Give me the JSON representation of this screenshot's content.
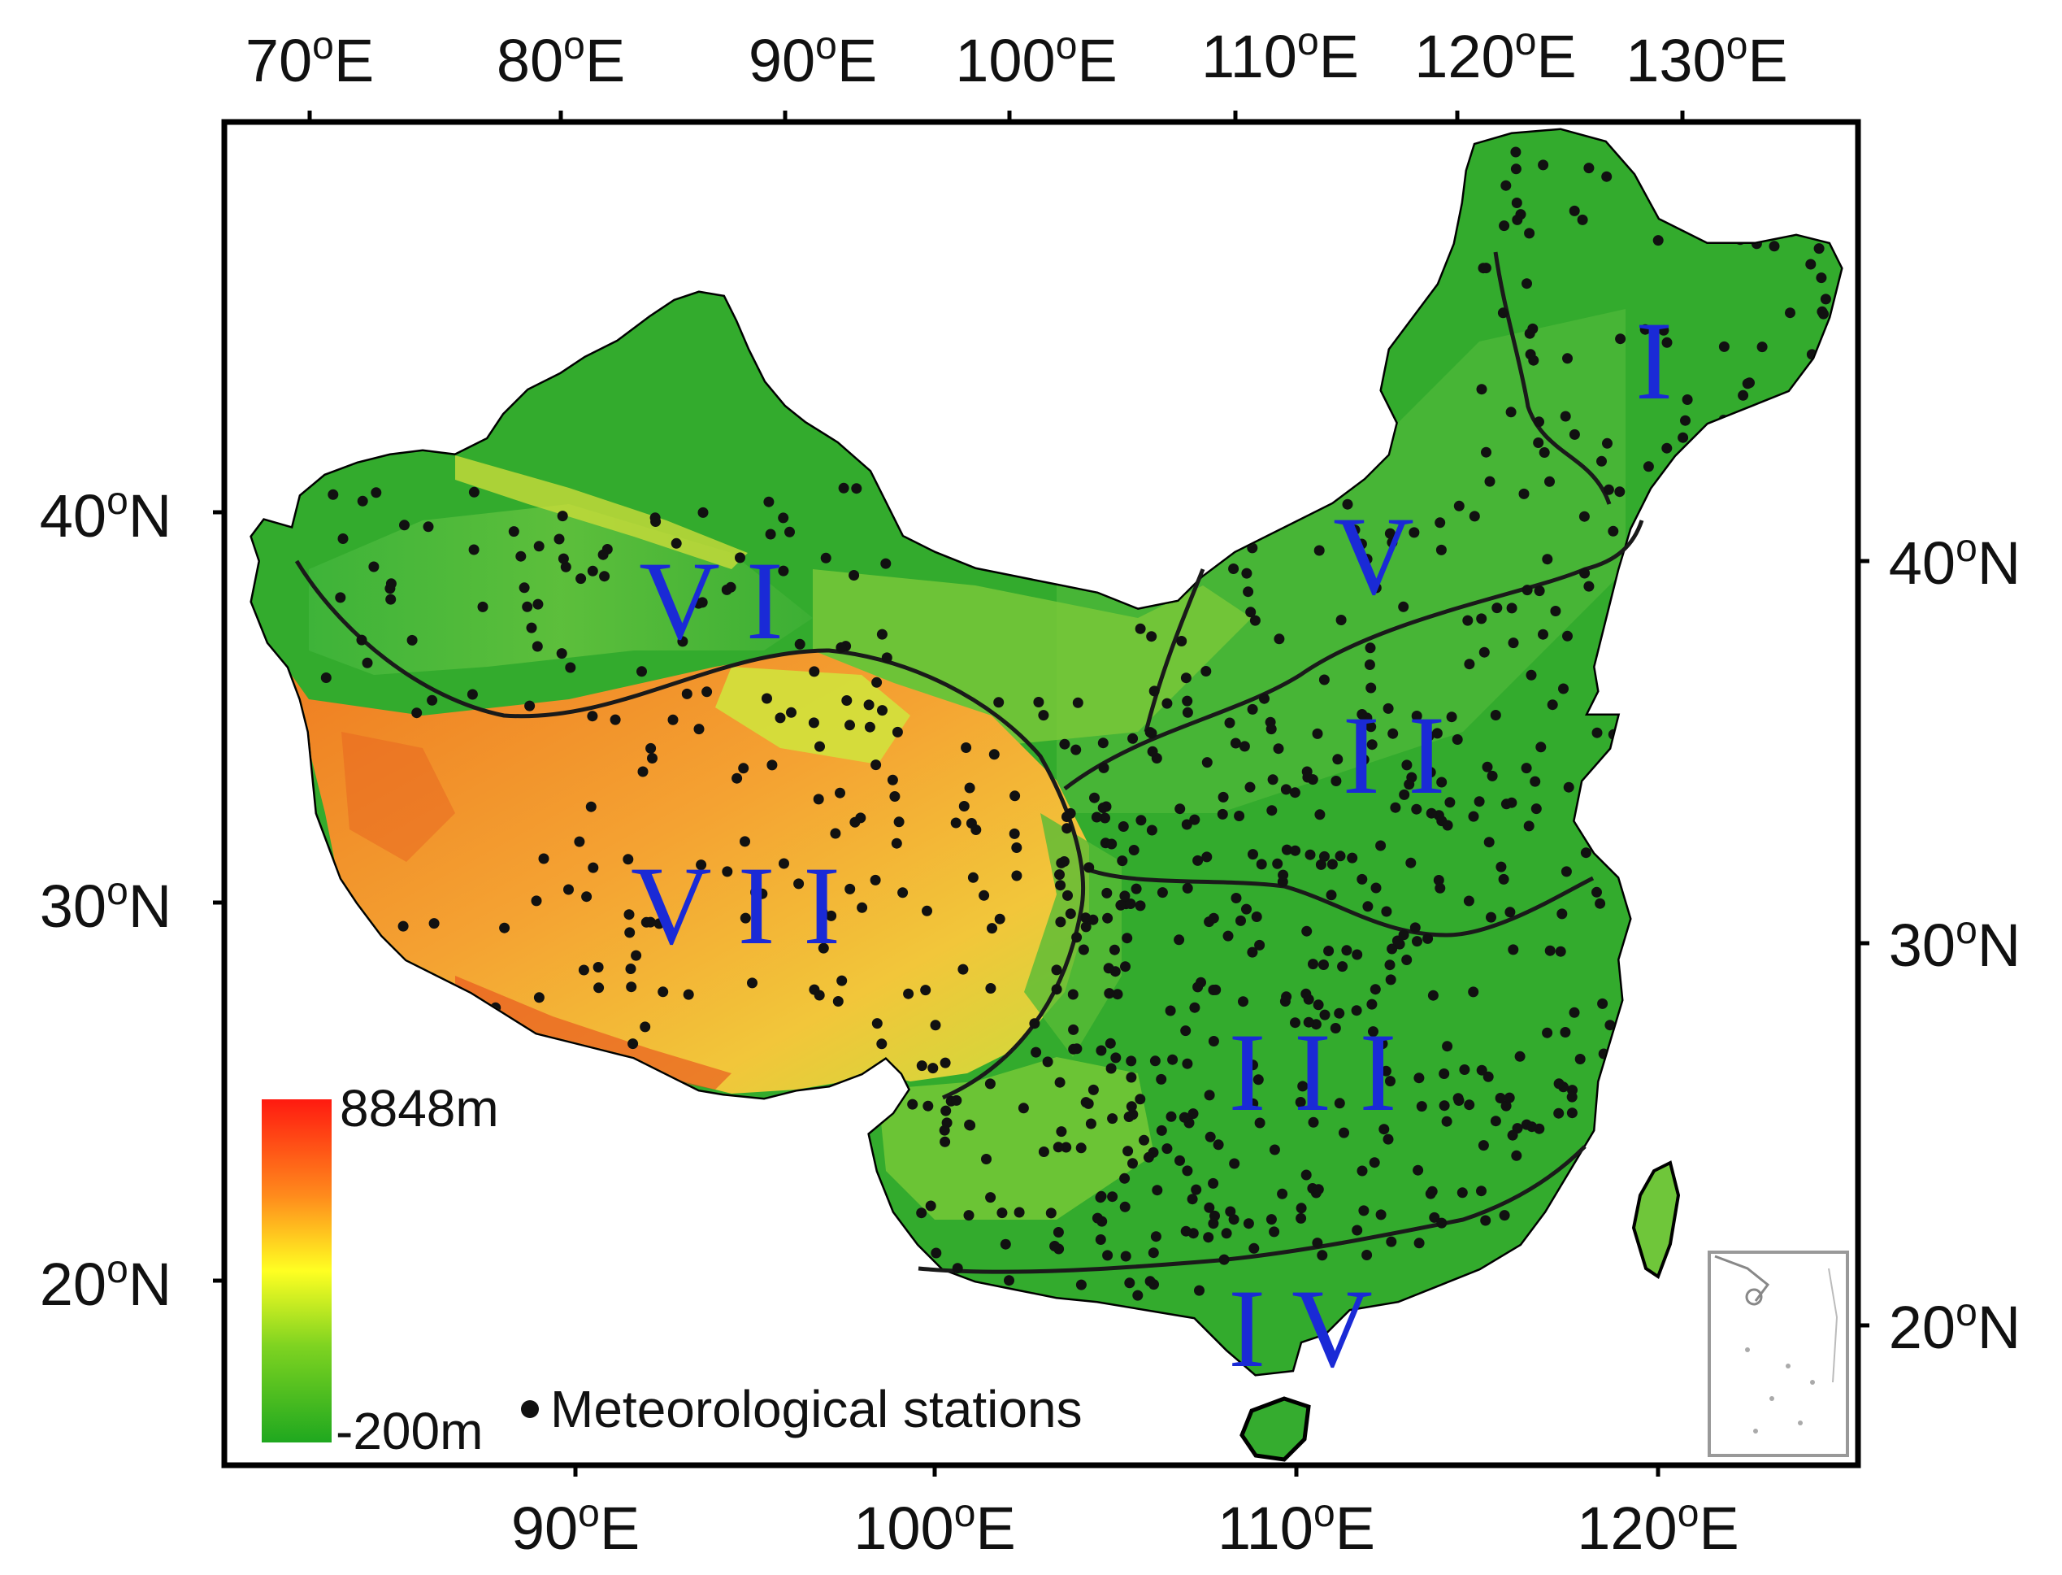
{
  "top_axis_labels": [
    {
      "value": "70",
      "suffix": "E"
    },
    {
      "value": "80",
      "suffix": "E"
    },
    {
      "value": "90",
      "suffix": "E"
    },
    {
      "value": "100",
      "suffix": "E"
    },
    {
      "value": "110",
      "suffix": "E"
    },
    {
      "value": "120",
      "suffix": "E"
    },
    {
      "value": "130",
      "suffix": "E"
    }
  ],
  "bottom_axis_labels": [
    {
      "value": "90",
      "suffix": "E"
    },
    {
      "value": "100",
      "suffix": "E"
    },
    {
      "value": "110",
      "suffix": "E"
    },
    {
      "value": "120",
      "suffix": "E"
    }
  ],
  "left_axis_labels": [
    {
      "value": "40",
      "suffix": "N"
    },
    {
      "value": "30",
      "suffix": "N"
    },
    {
      "value": "20",
      "suffix": "N"
    }
  ],
  "right_axis_labels": [
    {
      "value": "40",
      "suffix": "N"
    },
    {
      "value": "30",
      "suffix": "N"
    },
    {
      "value": "20",
      "suffix": "N"
    }
  ],
  "degree_symbol": "o",
  "regions": [
    {
      "id": "I",
      "label": "I"
    },
    {
      "id": "II",
      "label": "I I"
    },
    {
      "id": "III",
      "label": "I I I"
    },
    {
      "id": "IV",
      "label": "I V"
    },
    {
      "id": "V",
      "label": "V"
    },
    {
      "id": "VI",
      "label": "V I"
    },
    {
      "id": "VII",
      "label": "V I I"
    }
  ],
  "legend": {
    "elevation_max": "8848m",
    "elevation_min": "-200m",
    "gradient_colors": [
      "#ff1a10",
      "#ff8a1c",
      "#ffff22",
      "#7ed321",
      "#1fa81f"
    ],
    "stations_label": "Meteorological stations"
  },
  "colors": {
    "region_label": "#1a2ad6",
    "lowland_green": "#2fae2a",
    "plateau_orange": "#f2942a",
    "station_dot": "#111111",
    "boundary_line": "#1a1a1a"
  }
}
